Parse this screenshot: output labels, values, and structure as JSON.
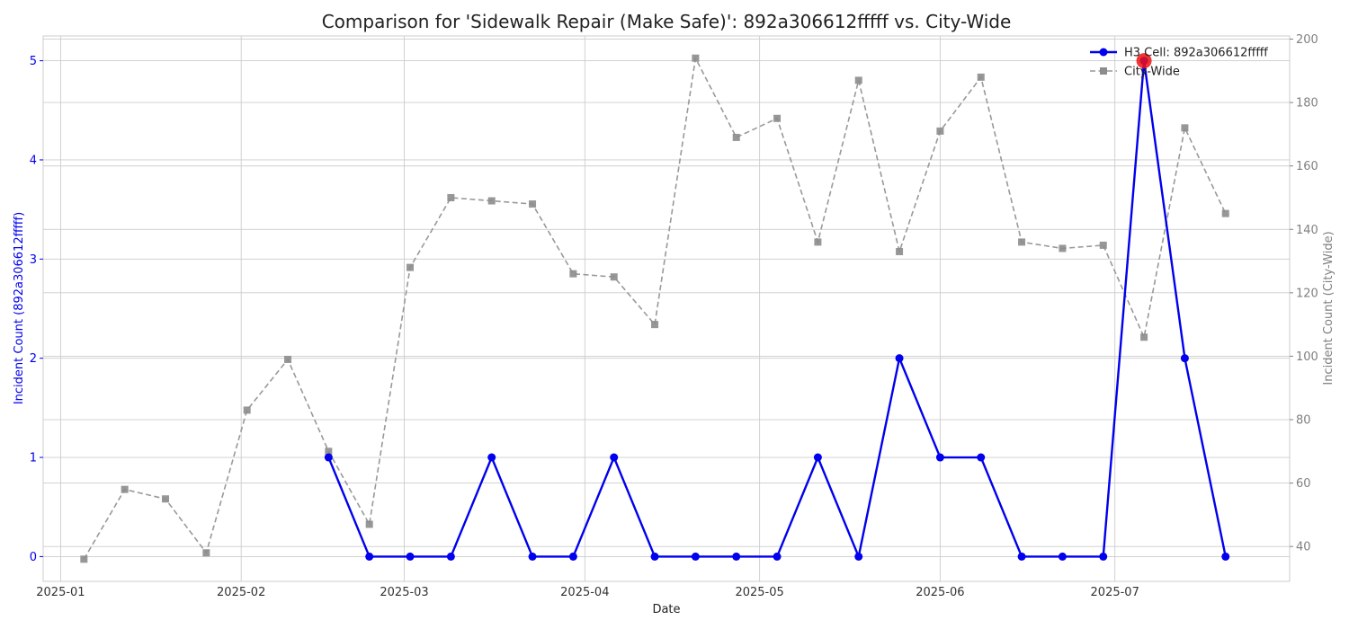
{
  "chart_data": {
    "type": "line",
    "title": "Comparison for 'Sidewalk Repair (Make Safe)': 892a306612fffff vs. City-Wide",
    "xlabel": "Date",
    "ylabel_left": "Incident Count (892a306612fffff)",
    "ylabel_right": "Incident Count (City-Wide)",
    "x_ticks": [
      "2025-01",
      "2025-02",
      "2025-03",
      "2025-04",
      "2025-05",
      "2025-06",
      "2025-07"
    ],
    "y_left_ticks": [
      "0",
      "1",
      "2",
      "3",
      "4",
      "5"
    ],
    "y_right_ticks": [
      "40",
      "60",
      "80",
      "100",
      "120",
      "140",
      "160",
      "180",
      "200"
    ],
    "ylim_left": [
      -0.25,
      5.25
    ],
    "ylim_right": [
      29,
      201
    ],
    "xlim": [
      "2024-12-29",
      "2025-07-31"
    ],
    "grid": true,
    "legend_position": "top-right",
    "highlight": {
      "date": "2025-07-06",
      "value": 5
    },
    "series": [
      {
        "name": "H3 Cell: 892a306612fffff",
        "axis": "left",
        "color": "#0000ee",
        "style": "solid",
        "marker": "circle",
        "dates": [
          "2025-02-16",
          "2025-02-23",
          "2025-03-02",
          "2025-03-09",
          "2025-03-16",
          "2025-03-23",
          "2025-03-30",
          "2025-04-06",
          "2025-04-13",
          "2025-04-20",
          "2025-04-27",
          "2025-05-04",
          "2025-05-11",
          "2025-05-18",
          "2025-05-25",
          "2025-06-01",
          "2025-06-08",
          "2025-06-15",
          "2025-06-22",
          "2025-06-29",
          "2025-07-06",
          "2025-07-13",
          "2025-07-20"
        ],
        "values": [
          1,
          0,
          0,
          0,
          1,
          0,
          0,
          1,
          0,
          0,
          0,
          0,
          1,
          0,
          2,
          1,
          1,
          0,
          0,
          0,
          5,
          2,
          0
        ]
      },
      {
        "name": "City-Wide",
        "axis": "right",
        "color": "#999999",
        "style": "dashed",
        "marker": "square",
        "dates": [
          "2025-01-05",
          "2025-01-12",
          "2025-01-19",
          "2025-01-26",
          "2025-02-02",
          "2025-02-09",
          "2025-02-16",
          "2025-02-23",
          "2025-03-02",
          "2025-03-09",
          "2025-03-16",
          "2025-03-23",
          "2025-03-30",
          "2025-04-06",
          "2025-04-13",
          "2025-04-20",
          "2025-04-27",
          "2025-05-04",
          "2025-05-11",
          "2025-05-18",
          "2025-05-25",
          "2025-06-01",
          "2025-06-08",
          "2025-06-15",
          "2025-06-22",
          "2025-06-29",
          "2025-07-06",
          "2025-07-13",
          "2025-07-20"
        ],
        "values": [
          36,
          58,
          55,
          38,
          83,
          99,
          70,
          47,
          128,
          150,
          149,
          148,
          126,
          125,
          110,
          194,
          169,
          175,
          136,
          187,
          133,
          171,
          188,
          136,
          134,
          135,
          106,
          172,
          145
        ]
      }
    ]
  }
}
